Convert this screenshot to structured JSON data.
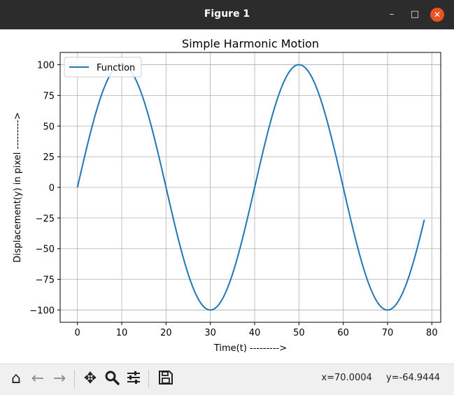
{
  "window": {
    "title": "Figure 1",
    "minimize_glyph": "–",
    "maximize_glyph": "□",
    "close_glyph": "✕"
  },
  "toolbar": {
    "icons": [
      "home-icon",
      "back-arrow-icon",
      "forward-arrow-icon",
      "pan-icon",
      "zoom-icon",
      "configure-subplots-icon",
      "save-icon"
    ],
    "x_readout": "x=70.0004",
    "y_readout": "y=-64.9444"
  },
  "chart_data": {
    "type": "line",
    "title": "Simple Harmonic Motion",
    "xlabel": "Time(t) --------->",
    "ylabel": "Displacement(y) in pixel --------->",
    "xlim": [
      -3.9,
      82.0
    ],
    "ylim": [
      -110,
      110
    ],
    "xticks": [
      0,
      10,
      20,
      30,
      40,
      50,
      60,
      70,
      80
    ],
    "xtick_labels": [
      "0",
      "10",
      "20",
      "30",
      "40",
      "50",
      "60",
      "70",
      "80"
    ],
    "yticks": [
      100,
      75,
      50,
      25,
      0,
      -25,
      -50,
      -75,
      -100
    ],
    "ytick_labels": [
      "100",
      "75",
      "50",
      "25",
      "0",
      "−25",
      "−50",
      "−75",
      "−100"
    ],
    "grid": true,
    "legend_position": "top-left",
    "series": [
      {
        "name": "Function",
        "color": "#1f77b4",
        "amplitude": 100,
        "period": 40,
        "x_start": 0,
        "x_end": 78.3,
        "sample_step": 0.1
      }
    ]
  }
}
